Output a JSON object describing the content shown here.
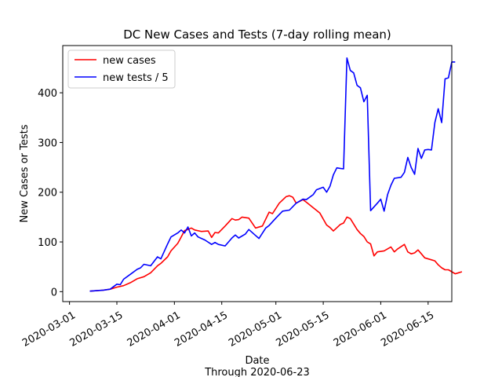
{
  "chart_data": {
    "type": "line",
    "title": "DC New Cases and Tests (7-day rolling mean)",
    "xlabel": "Date",
    "xlabel_sub": "Through 2020-06-23",
    "ylabel": "New Cases or Tests",
    "xlim": [
      "2020-02-28",
      "2020-06-22"
    ],
    "ylim": [
      -20,
      495
    ],
    "x_ticks": [
      "2020-03-01",
      "2020-03-15",
      "2020-04-01",
      "2020-04-15",
      "2020-05-01",
      "2020-05-15",
      "2020-06-01",
      "2020-06-15"
    ],
    "y_ticks": [
      0,
      100,
      200,
      300,
      400
    ],
    "grid": false,
    "legend_position": "upper-left",
    "series": [
      {
        "name": "new cases",
        "color": "#ff0000",
        "points": [
          [
            "2020-03-07",
            1
          ],
          [
            "2020-03-09",
            2
          ],
          [
            "2020-03-11",
            3
          ],
          [
            "2020-03-13",
            5
          ],
          [
            "2020-03-15",
            9
          ],
          [
            "2020-03-17",
            12
          ],
          [
            "2020-03-19",
            18
          ],
          [
            "2020-03-21",
            26
          ],
          [
            "2020-03-23",
            30
          ],
          [
            "2020-03-25",
            38
          ],
          [
            "2020-03-27",
            52
          ],
          [
            "2020-03-28",
            57
          ],
          [
            "2020-03-30",
            70
          ],
          [
            "2020-03-31",
            82
          ],
          [
            "2020-04-02",
            97
          ],
          [
            "2020-04-03",
            110
          ],
          [
            "2020-04-04",
            123
          ],
          [
            "2020-04-05",
            125
          ],
          [
            "2020-04-06",
            128
          ],
          [
            "2020-04-07",
            124
          ],
          [
            "2020-04-09",
            121
          ],
          [
            "2020-04-11",
            122
          ],
          [
            "2020-04-12",
            109
          ],
          [
            "2020-04-13",
            119
          ],
          [
            "2020-04-14",
            118
          ],
          [
            "2020-04-16",
            132
          ],
          [
            "2020-04-18",
            147
          ],
          [
            "2020-04-19",
            144
          ],
          [
            "2020-04-20",
            145
          ],
          [
            "2020-04-21",
            150
          ],
          [
            "2020-04-23",
            148
          ],
          [
            "2020-04-25",
            128
          ],
          [
            "2020-04-27",
            132
          ],
          [
            "2020-04-29",
            160
          ],
          [
            "2020-04-30",
            157
          ],
          [
            "2020-05-02",
            178
          ],
          [
            "2020-05-04",
            191
          ],
          [
            "2020-05-05",
            193
          ],
          [
            "2020-05-06",
            190
          ],
          [
            "2020-05-07",
            178
          ],
          [
            "2020-05-09",
            185
          ],
          [
            "2020-05-10",
            180
          ],
          [
            "2020-05-12",
            169
          ],
          [
            "2020-05-14",
            158
          ],
          [
            "2020-05-16",
            134
          ],
          [
            "2020-05-17",
            129
          ],
          [
            "2020-05-18",
            122
          ],
          [
            "2020-05-20",
            135
          ],
          [
            "2020-05-21",
            138
          ],
          [
            "2020-05-22",
            150
          ],
          [
            "2020-05-23",
            147
          ],
          [
            "2020-05-25",
            125
          ],
          [
            "2020-05-26",
            117
          ],
          [
            "2020-05-27",
            111
          ],
          [
            "2020-05-28",
            100
          ],
          [
            "2020-05-29",
            96
          ],
          [
            "2020-05-30",
            72
          ],
          [
            "2020-05-31",
            80
          ],
          [
            "2020-06-02",
            82
          ],
          [
            "2020-06-04",
            90
          ],
          [
            "2020-06-05",
            80
          ],
          [
            "2020-06-06",
            86
          ],
          [
            "2020-06-08",
            95
          ],
          [
            "2020-06-09",
            80
          ],
          [
            "2020-06-10",
            76
          ],
          [
            "2020-06-11",
            78
          ],
          [
            "2020-06-12",
            84
          ],
          [
            "2020-06-13",
            76
          ],
          [
            "2020-06-14",
            68
          ],
          [
            "2020-06-16",
            64
          ],
          [
            "2020-06-17",
            62
          ],
          [
            "2020-06-18",
            54
          ],
          [
            "2020-06-19",
            48
          ],
          [
            "2020-06-20",
            44
          ],
          [
            "2020-06-21",
            44
          ],
          [
            "2020-06-22",
            40
          ],
          [
            "2020-06-23",
            36
          ],
          [
            "2020-06-24",
            38
          ],
          [
            "2020-06-25",
            40
          ]
        ]
      },
      {
        "name": "new tests / 5",
        "color": "#0000ff",
        "points": [
          [
            "2020-03-07",
            1
          ],
          [
            "2020-03-09",
            2
          ],
          [
            "2020-03-11",
            3
          ],
          [
            "2020-03-13",
            5
          ],
          [
            "2020-03-15",
            15
          ],
          [
            "2020-03-16",
            14
          ],
          [
            "2020-03-17",
            25
          ],
          [
            "2020-03-19",
            35
          ],
          [
            "2020-03-21",
            45
          ],
          [
            "2020-03-22",
            48
          ],
          [
            "2020-03-23",
            55
          ],
          [
            "2020-03-25",
            52
          ],
          [
            "2020-03-27",
            70
          ],
          [
            "2020-03-28",
            66
          ],
          [
            "2020-03-30",
            96
          ],
          [
            "2020-03-31",
            110
          ],
          [
            "2020-04-02",
            118
          ],
          [
            "2020-04-03",
            124
          ],
          [
            "2020-04-04",
            118
          ],
          [
            "2020-04-05",
            130
          ],
          [
            "2020-04-06",
            112
          ],
          [
            "2020-04-07",
            118
          ],
          [
            "2020-04-08",
            110
          ],
          [
            "2020-04-10",
            104
          ],
          [
            "2020-04-12",
            95
          ],
          [
            "2020-04-13",
            99
          ],
          [
            "2020-04-14",
            95
          ],
          [
            "2020-04-16",
            92
          ],
          [
            "2020-04-18",
            108
          ],
          [
            "2020-04-19",
            114
          ],
          [
            "2020-04-20",
            108
          ],
          [
            "2020-04-22",
            116
          ],
          [
            "2020-04-23",
            125
          ],
          [
            "2020-04-25",
            113
          ],
          [
            "2020-04-26",
            107
          ],
          [
            "2020-04-28",
            128
          ],
          [
            "2020-04-29",
            133
          ],
          [
            "2020-05-01",
            148
          ],
          [
            "2020-05-02",
            155
          ],
          [
            "2020-05-03",
            162
          ],
          [
            "2020-05-05",
            164
          ],
          [
            "2020-05-07",
            178
          ],
          [
            "2020-05-09",
            186
          ],
          [
            "2020-05-10",
            185
          ],
          [
            "2020-05-12",
            195
          ],
          [
            "2020-05-13",
            205
          ],
          [
            "2020-05-15",
            210
          ],
          [
            "2020-05-16",
            200
          ],
          [
            "2020-05-17",
            212
          ],
          [
            "2020-05-18",
            235
          ],
          [
            "2020-05-19",
            249
          ],
          [
            "2020-05-20",
            248
          ],
          [
            "2020-05-21",
            247
          ],
          [
            "2020-05-22",
            470
          ],
          [
            "2020-05-23",
            445
          ],
          [
            "2020-05-24",
            440
          ],
          [
            "2020-05-25",
            415
          ],
          [
            "2020-05-26",
            410
          ],
          [
            "2020-05-27",
            382
          ],
          [
            "2020-05-28",
            395
          ],
          [
            "2020-05-29",
            163
          ],
          [
            "2020-05-31",
            178
          ],
          [
            "2020-06-01",
            186
          ],
          [
            "2020-06-02",
            162
          ],
          [
            "2020-06-03",
            195
          ],
          [
            "2020-06-04",
            214
          ],
          [
            "2020-06-05",
            228
          ],
          [
            "2020-06-07",
            230
          ],
          [
            "2020-06-08",
            240
          ],
          [
            "2020-06-09",
            270
          ],
          [
            "2020-06-10",
            250
          ],
          [
            "2020-06-11",
            236
          ],
          [
            "2020-06-12",
            288
          ],
          [
            "2020-06-13",
            268
          ],
          [
            "2020-06-14",
            285
          ],
          [
            "2020-06-15",
            286
          ],
          [
            "2020-06-16",
            285
          ],
          [
            "2020-06-17",
            340
          ],
          [
            "2020-06-18",
            368
          ],
          [
            "2020-06-19",
            340
          ],
          [
            "2020-06-20",
            428
          ],
          [
            "2020-06-21",
            430
          ],
          [
            "2020-06-22",
            462
          ],
          [
            "2020-06-23",
            462
          ]
        ]
      }
    ]
  }
}
